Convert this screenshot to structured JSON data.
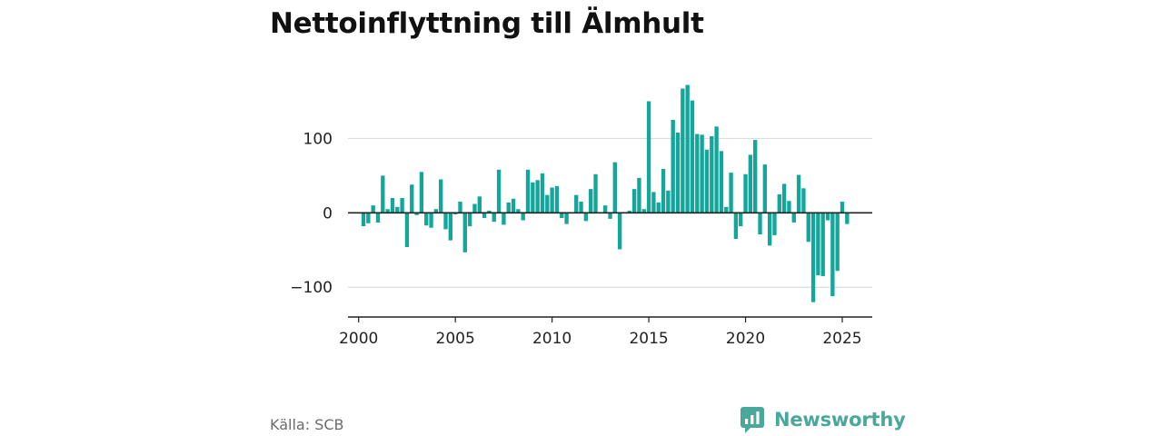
{
  "page": {
    "title": "Nettoinflyttning till Älmhult",
    "source": "Källa: SCB",
    "brand": "Newsworthy"
  },
  "colors": {
    "bar": "#14a69a",
    "zero_line": "#222222",
    "grid": "#d6d6d6",
    "brand": "#4aa89a"
  },
  "chart_data": {
    "type": "bar",
    "title": "Nettoinflyttning till Älmhult",
    "xlabel": "",
    "ylabel": "",
    "x_ticks": [
      "2000",
      "2005",
      "2010",
      "2015",
      "2020",
      "2025"
    ],
    "y_ticks": [
      "−100",
      "0",
      "100"
    ],
    "ylim": [
      -140,
      175
    ],
    "xlim": [
      1999.45,
      2026.55
    ],
    "grid": true,
    "series": [
      {
        "frequency": "quarterly",
        "x": [
          2000.25,
          2000.5,
          2000.75,
          2001.0,
          2001.25,
          2001.5,
          2001.75,
          2002.0,
          2002.25,
          2002.5,
          2002.75,
          2003.0,
          2003.25,
          2003.5,
          2003.75,
          2004.0,
          2004.25,
          2004.5,
          2004.75,
          2005.0,
          2005.25,
          2005.5,
          2005.75,
          2006.0,
          2006.25,
          2006.5,
          2006.75,
          2007.0,
          2007.25,
          2007.5,
          2007.75,
          2008.0,
          2008.25,
          2008.5,
          2008.75,
          2009.0,
          2009.25,
          2009.5,
          2009.75,
          2010.0,
          2010.25,
          2010.5,
          2010.75,
          2011.0,
          2011.25,
          2011.5,
          2011.75,
          2012.0,
          2012.25,
          2012.5,
          2012.75,
          2013.0,
          2013.25,
          2013.5,
          2013.75,
          2014.0,
          2014.25,
          2014.5,
          2014.75,
          2015.0,
          2015.25,
          2015.5,
          2015.75,
          2016.0,
          2016.25,
          2016.5,
          2016.75,
          2017.0,
          2017.25,
          2017.5,
          2017.75,
          2018.0,
          2018.25,
          2018.5,
          2018.75,
          2019.0,
          2019.25,
          2019.5,
          2019.75,
          2020.0,
          2020.25,
          2020.5,
          2020.75,
          2021.0,
          2021.25,
          2021.5,
          2021.75,
          2022.0,
          2022.25,
          2022.5,
          2022.75,
          2023.0,
          2023.25,
          2023.5,
          2023.75,
          2024.0,
          2024.25,
          2024.5,
          2024.75,
          2025.0,
          2025.25
        ],
        "values": [
          -18,
          -14,
          10,
          -13,
          50,
          5,
          20,
          8,
          20,
          -46,
          38,
          -3,
          55,
          -17,
          -20,
          5,
          45,
          -22,
          -37,
          -2,
          15,
          -53,
          -18,
          12,
          22,
          -7,
          3,
          -12,
          58,
          -16,
          14,
          19,
          5,
          -10,
          58,
          41,
          44,
          53,
          24,
          34,
          36,
          -7,
          -15,
          0,
          24,
          15,
          -11,
          32,
          52,
          0,
          10,
          -8,
          68,
          -49,
          0,
          3,
          32,
          47,
          5,
          150,
          28,
          14,
          59,
          30,
          125,
          108,
          167,
          172,
          151,
          106,
          105,
          85,
          103,
          116,
          83,
          8,
          54,
          -35,
          -18,
          52,
          78,
          98,
          -29,
          65,
          -44,
          -30,
          25,
          39,
          16,
          -13,
          51,
          33,
          -39,
          -120,
          -84,
          -85,
          -10,
          -112,
          -78,
          15,
          -15
        ]
      }
    ]
  }
}
